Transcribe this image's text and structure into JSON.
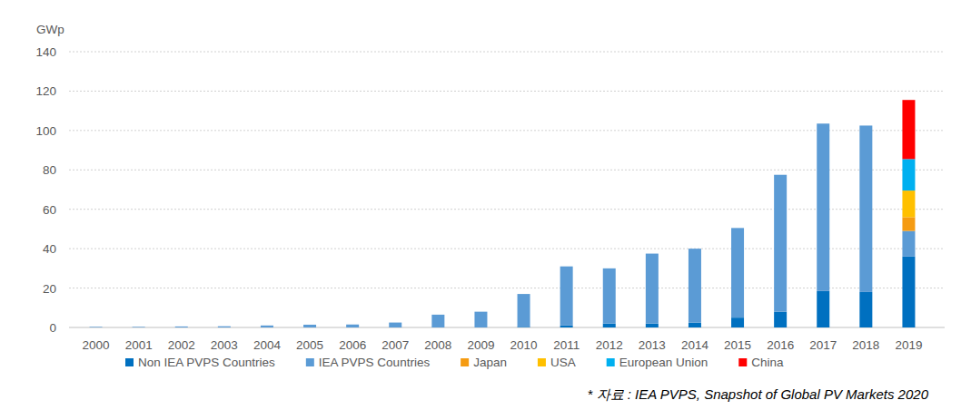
{
  "chart_data": {
    "type": "bar",
    "stacked": true,
    "y_axis_label": "GWp",
    "source": "* 자료 : IEA PVPS, Snapshot of Global PV Markets 2020",
    "categories": [
      "2000",
      "2001",
      "2002",
      "2003",
      "2004",
      "2005",
      "2006",
      "2007",
      "2008",
      "2009",
      "2010",
      "2011",
      "2012",
      "2013",
      "2014",
      "2015",
      "2016",
      "2017",
      "2018",
      "2019"
    ],
    "series": [
      {
        "name": "Non IEA PVPS Countries",
        "color": "#0070c0",
        "values": [
          0,
          0,
          0,
          0,
          0,
          0,
          0,
          0,
          0,
          0,
          0.3,
          1,
          2,
          2,
          2.5,
          5,
          8,
          18.5,
          18,
          36
        ]
      },
      {
        "name": "IEA PVPS Countries",
        "color": "#5b9bd5",
        "values": [
          0.3,
          0.3,
          0.5,
          0.6,
          1,
          1.4,
          1.5,
          2.5,
          6.5,
          8,
          16.7,
          30,
          28,
          35.5,
          37.5,
          45.5,
          69.5,
          85,
          84.5,
          13
        ]
      },
      {
        "name": "Japan",
        "color": "#f59b12",
        "values": [
          null,
          null,
          null,
          null,
          null,
          null,
          null,
          null,
          null,
          null,
          null,
          null,
          null,
          null,
          null,
          null,
          null,
          null,
          null,
          7
        ]
      },
      {
        "name": "USA",
        "color": "#ffc000",
        "values": [
          null,
          null,
          null,
          null,
          null,
          null,
          null,
          null,
          null,
          null,
          null,
          null,
          null,
          null,
          null,
          null,
          null,
          null,
          null,
          13.5
        ]
      },
      {
        "name": "European Union",
        "color": "#00b0f0",
        "values": [
          null,
          null,
          null,
          null,
          null,
          null,
          null,
          null,
          null,
          null,
          null,
          null,
          null,
          null,
          null,
          null,
          null,
          null,
          null,
          16
        ]
      },
      {
        "name": "China",
        "color": "#ff0000",
        "values": [
          null,
          null,
          null,
          null,
          null,
          null,
          null,
          null,
          null,
          null,
          null,
          null,
          null,
          null,
          null,
          null,
          null,
          null,
          null,
          30
        ]
      }
    ],
    "ylim": [
      0,
      140
    ],
    "yticks": [
      0,
      20,
      40,
      60,
      80,
      100,
      120,
      140
    ],
    "grid": true,
    "legend": "bottom"
  }
}
